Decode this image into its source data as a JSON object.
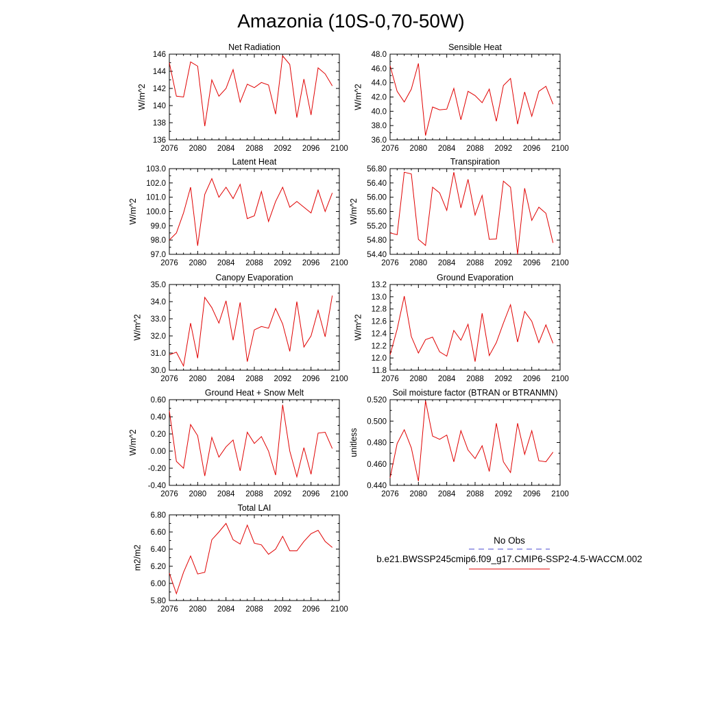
{
  "figure_title": "Amazonia (10S-0,70-50W)",
  "legend": {
    "obs_label": "No Obs",
    "obs_color": "#4a4ad0",
    "model_label": "b.e21.BWSSP245cmip6.f09_g17.CMIP6-SSP2-4.5-WACCM.002",
    "model_color": "#e00000"
  },
  "chart_data": [
    {
      "type": "line",
      "title": "Net Radiation",
      "ylabel": "W/m^2",
      "xlim": [
        2076,
        2100
      ],
      "ylim": [
        136,
        146
      ],
      "yticks": [
        "136",
        "138",
        "140",
        "142",
        "144",
        "146"
      ],
      "xticks": [
        "2076",
        "2080",
        "2084",
        "2088",
        "2092",
        "2096",
        "2100"
      ],
      "x": [
        2076,
        2077,
        2078,
        2079,
        2080,
        2081,
        2082,
        2083,
        2084,
        2085,
        2086,
        2087,
        2088,
        2089,
        2090,
        2091,
        2092,
        2093,
        2094,
        2095,
        2096,
        2097,
        2098,
        2099
      ],
      "series": [
        {
          "color": "#e00000",
          "values": [
            145.0,
            141.1,
            141.0,
            145.1,
            144.6,
            137.6,
            143.0,
            141.1,
            142.0,
            144.2,
            140.4,
            142.5,
            142.1,
            142.7,
            142.4,
            139.0,
            145.8,
            144.8,
            138.6,
            143.1,
            138.9,
            144.4,
            143.7,
            142.3
          ]
        }
      ]
    },
    {
      "type": "line",
      "title": "Sensible Heat",
      "ylabel": "W/m^2",
      "xlim": [
        2076,
        2100
      ],
      "ylim": [
        36,
        48
      ],
      "yticks": [
        "36.0",
        "38.0",
        "40.0",
        "42.0",
        "44.0",
        "46.0",
        "48.0"
      ],
      "xticks": [
        "2076",
        "2080",
        "2084",
        "2088",
        "2092",
        "2096",
        "2100"
      ],
      "x": [
        2076,
        2077,
        2078,
        2079,
        2080,
        2081,
        2082,
        2083,
        2084,
        2085,
        2086,
        2087,
        2088,
        2089,
        2090,
        2091,
        2092,
        2093,
        2094,
        2095,
        2096,
        2097,
        2098,
        2099
      ],
      "series": [
        {
          "color": "#e00000",
          "values": [
            46.4,
            42.8,
            41.3,
            43.1,
            46.7,
            36.6,
            40.6,
            40.2,
            40.3,
            43.2,
            38.8,
            42.8,
            42.2,
            41.2,
            43.1,
            38.6,
            43.6,
            44.6,
            38.2,
            42.7,
            39.3,
            42.8,
            43.5,
            41.0
          ]
        }
      ]
    },
    {
      "type": "line",
      "title": "Latent Heat",
      "ylabel": "W/m^2",
      "xlim": [
        2076,
        2100
      ],
      "ylim": [
        97,
        103
      ],
      "yticks": [
        "97.0",
        "98.0",
        "99.0",
        "100.0",
        "101.0",
        "102.0",
        "103.0"
      ],
      "xticks": [
        "2076",
        "2080",
        "2084",
        "2088",
        "2092",
        "2096",
        "2100"
      ],
      "x": [
        2076,
        2077,
        2078,
        2079,
        2080,
        2081,
        2082,
        2083,
        2084,
        2085,
        2086,
        2087,
        2088,
        2089,
        2090,
        2091,
        2092,
        2093,
        2094,
        2095,
        2096,
        2097,
        2098,
        2099
      ],
      "series": [
        {
          "color": "#e00000",
          "values": [
            98.0,
            98.5,
            99.9,
            101.7,
            97.6,
            101.2,
            102.3,
            101.0,
            101.7,
            100.9,
            101.9,
            99.5,
            99.7,
            101.4,
            99.3,
            100.7,
            101.7,
            100.3,
            100.7,
            100.3,
            99.9,
            101.5,
            100.0,
            101.3
          ]
        }
      ]
    },
    {
      "type": "line",
      "title": "Transpiration",
      "ylabel": "W/m^2",
      "xlim": [
        2076,
        2100
      ],
      "ylim": [
        54.4,
        56.8
      ],
      "yticks": [
        "54.40",
        "54.80",
        "55.20",
        "55.60",
        "56.00",
        "56.40",
        "56.80"
      ],
      "xticks": [
        "2076",
        "2080",
        "2084",
        "2088",
        "2092",
        "2096",
        "2100"
      ],
      "x": [
        2076,
        2077,
        2078,
        2079,
        2080,
        2081,
        2082,
        2083,
        2084,
        2085,
        2086,
        2087,
        2088,
        2089,
        2090,
        2091,
        2092,
        2093,
        2094,
        2095,
        2096,
        2097,
        2098,
        2099
      ],
      "series": [
        {
          "color": "#e00000",
          "values": [
            55.0,
            54.95,
            56.7,
            56.65,
            54.82,
            54.65,
            56.28,
            56.12,
            55.63,
            56.7,
            55.7,
            56.5,
            55.5,
            56.05,
            54.82,
            54.83,
            56.45,
            56.28,
            54.4,
            56.25,
            55.35,
            55.72,
            55.55,
            54.72
          ]
        }
      ]
    },
    {
      "type": "line",
      "title": "Canopy Evaporation",
      "ylabel": "W/m^2",
      "xlim": [
        2076,
        2100
      ],
      "ylim": [
        30,
        35
      ],
      "yticks": [
        "30.0",
        "31.0",
        "32.0",
        "33.0",
        "34.0",
        "35.0"
      ],
      "xticks": [
        "2076",
        "2080",
        "2084",
        "2088",
        "2092",
        "2096",
        "2100"
      ],
      "x": [
        2076,
        2077,
        2078,
        2079,
        2080,
        2081,
        2082,
        2083,
        2084,
        2085,
        2086,
        2087,
        2088,
        2089,
        2090,
        2091,
        2092,
        2093,
        2094,
        2095,
        2096,
        2097,
        2098,
        2099
      ],
      "series": [
        {
          "color": "#e00000",
          "values": [
            30.9,
            31.05,
            30.25,
            32.75,
            30.7,
            34.25,
            33.65,
            32.75,
            34.05,
            31.75,
            33.95,
            30.5,
            32.35,
            32.55,
            32.45,
            33.6,
            32.7,
            31.1,
            34.0,
            31.35,
            32.0,
            33.5,
            31.95,
            34.35
          ]
        }
      ]
    },
    {
      "type": "line",
      "title": "Ground Evaporation",
      "ylabel": "W/m^2",
      "xlim": [
        2076,
        2100
      ],
      "ylim": [
        11.8,
        13.2
      ],
      "yticks": [
        "11.8",
        "12.0",
        "12.2",
        "12.4",
        "12.6",
        "12.8",
        "13.0",
        "13.2"
      ],
      "xticks": [
        "2076",
        "2080",
        "2084",
        "2088",
        "2092",
        "2096",
        "2100"
      ],
      "x": [
        2076,
        2077,
        2078,
        2079,
        2080,
        2081,
        2082,
        2083,
        2084,
        2085,
        2086,
        2087,
        2088,
        2089,
        2090,
        2091,
        2092,
        2093,
        2094,
        2095,
        2096,
        2097,
        2098,
        2099
      ],
      "series": [
        {
          "color": "#e00000",
          "values": [
            12.05,
            12.47,
            13.01,
            12.35,
            12.08,
            12.3,
            12.34,
            12.1,
            12.03,
            12.45,
            12.29,
            12.55,
            11.94,
            12.73,
            12.04,
            12.25,
            12.57,
            12.87,
            12.26,
            12.76,
            12.6,
            12.25,
            12.54,
            12.24
          ]
        }
      ]
    },
    {
      "type": "line",
      "title": "Ground Heat + Snow Melt",
      "ylabel": "W/m^2",
      "xlim": [
        2076,
        2100
      ],
      "ylim": [
        -0.4,
        0.6
      ],
      "yticks": [
        "-0.40",
        "-0.20",
        "0.00",
        "0.20",
        "0.40",
        "0.60"
      ],
      "xticks": [
        "2076",
        "2080",
        "2084",
        "2088",
        "2092",
        "2096",
        "2100"
      ],
      "x": [
        2076,
        2077,
        2078,
        2079,
        2080,
        2081,
        2082,
        2083,
        2084,
        2085,
        2086,
        2087,
        2088,
        2089,
        2090,
        2091,
        2092,
        2093,
        2094,
        2095,
        2096,
        2097,
        2098,
        2099
      ],
      "series": [
        {
          "color": "#e00000",
          "values": [
            0.47,
            -0.12,
            -0.2,
            0.31,
            0.18,
            -0.29,
            0.16,
            -0.07,
            0.05,
            0.13,
            -0.23,
            0.22,
            0.09,
            0.17,
            0.0,
            -0.28,
            0.54,
            0.0,
            -0.3,
            0.04,
            -0.27,
            0.21,
            0.22,
            0.03
          ]
        }
      ]
    },
    {
      "type": "line",
      "title": "Soil moisture factor (BTRAN or BTRANMN)",
      "ylabel": "unitless",
      "xlim": [
        2076,
        2100
      ],
      "ylim": [
        0.44,
        0.52
      ],
      "yticks": [
        "0.440",
        "0.460",
        "0.480",
        "0.500",
        "0.520"
      ],
      "xticks": [
        "2076",
        "2080",
        "2084",
        "2088",
        "2092",
        "2096",
        "2100"
      ],
      "x": [
        2076,
        2077,
        2078,
        2079,
        2080,
        2081,
        2082,
        2083,
        2084,
        2085,
        2086,
        2087,
        2088,
        2089,
        2090,
        2091,
        2092,
        2093,
        2094,
        2095,
        2096,
        2097,
        2098,
        2099
      ],
      "series": [
        {
          "color": "#e00000",
          "values": [
            0.447,
            0.479,
            0.492,
            0.475,
            0.444,
            0.519,
            0.486,
            0.483,
            0.487,
            0.462,
            0.491,
            0.473,
            0.465,
            0.477,
            0.453,
            0.498,
            0.462,
            0.452,
            0.498,
            0.469,
            0.491,
            0.463,
            0.462,
            0.471
          ]
        }
      ]
    },
    {
      "type": "line",
      "title": "Total LAI",
      "ylabel": "m2/m2",
      "xlim": [
        2076,
        2100
      ],
      "ylim": [
        5.8,
        6.8
      ],
      "yticks": [
        "5.80",
        "6.00",
        "6.20",
        "6.40",
        "6.60",
        "6.80"
      ],
      "xticks": [
        "2076",
        "2080",
        "2084",
        "2088",
        "2092",
        "2096",
        "2100"
      ],
      "x": [
        2076,
        2077,
        2078,
        2079,
        2080,
        2081,
        2082,
        2083,
        2084,
        2085,
        2086,
        2087,
        2088,
        2089,
        2090,
        2091,
        2092,
        2093,
        2094,
        2095,
        2096,
        2097,
        2098,
        2099
      ],
      "series": [
        {
          "color": "#e00000",
          "values": [
            6.12,
            5.88,
            6.13,
            6.32,
            6.11,
            6.13,
            6.51,
            6.6,
            6.7,
            6.51,
            6.46,
            6.68,
            6.47,
            6.45,
            6.34,
            6.4,
            6.55,
            6.38,
            6.38,
            6.49,
            6.58,
            6.62,
            6.49,
            6.42
          ]
        }
      ]
    }
  ]
}
